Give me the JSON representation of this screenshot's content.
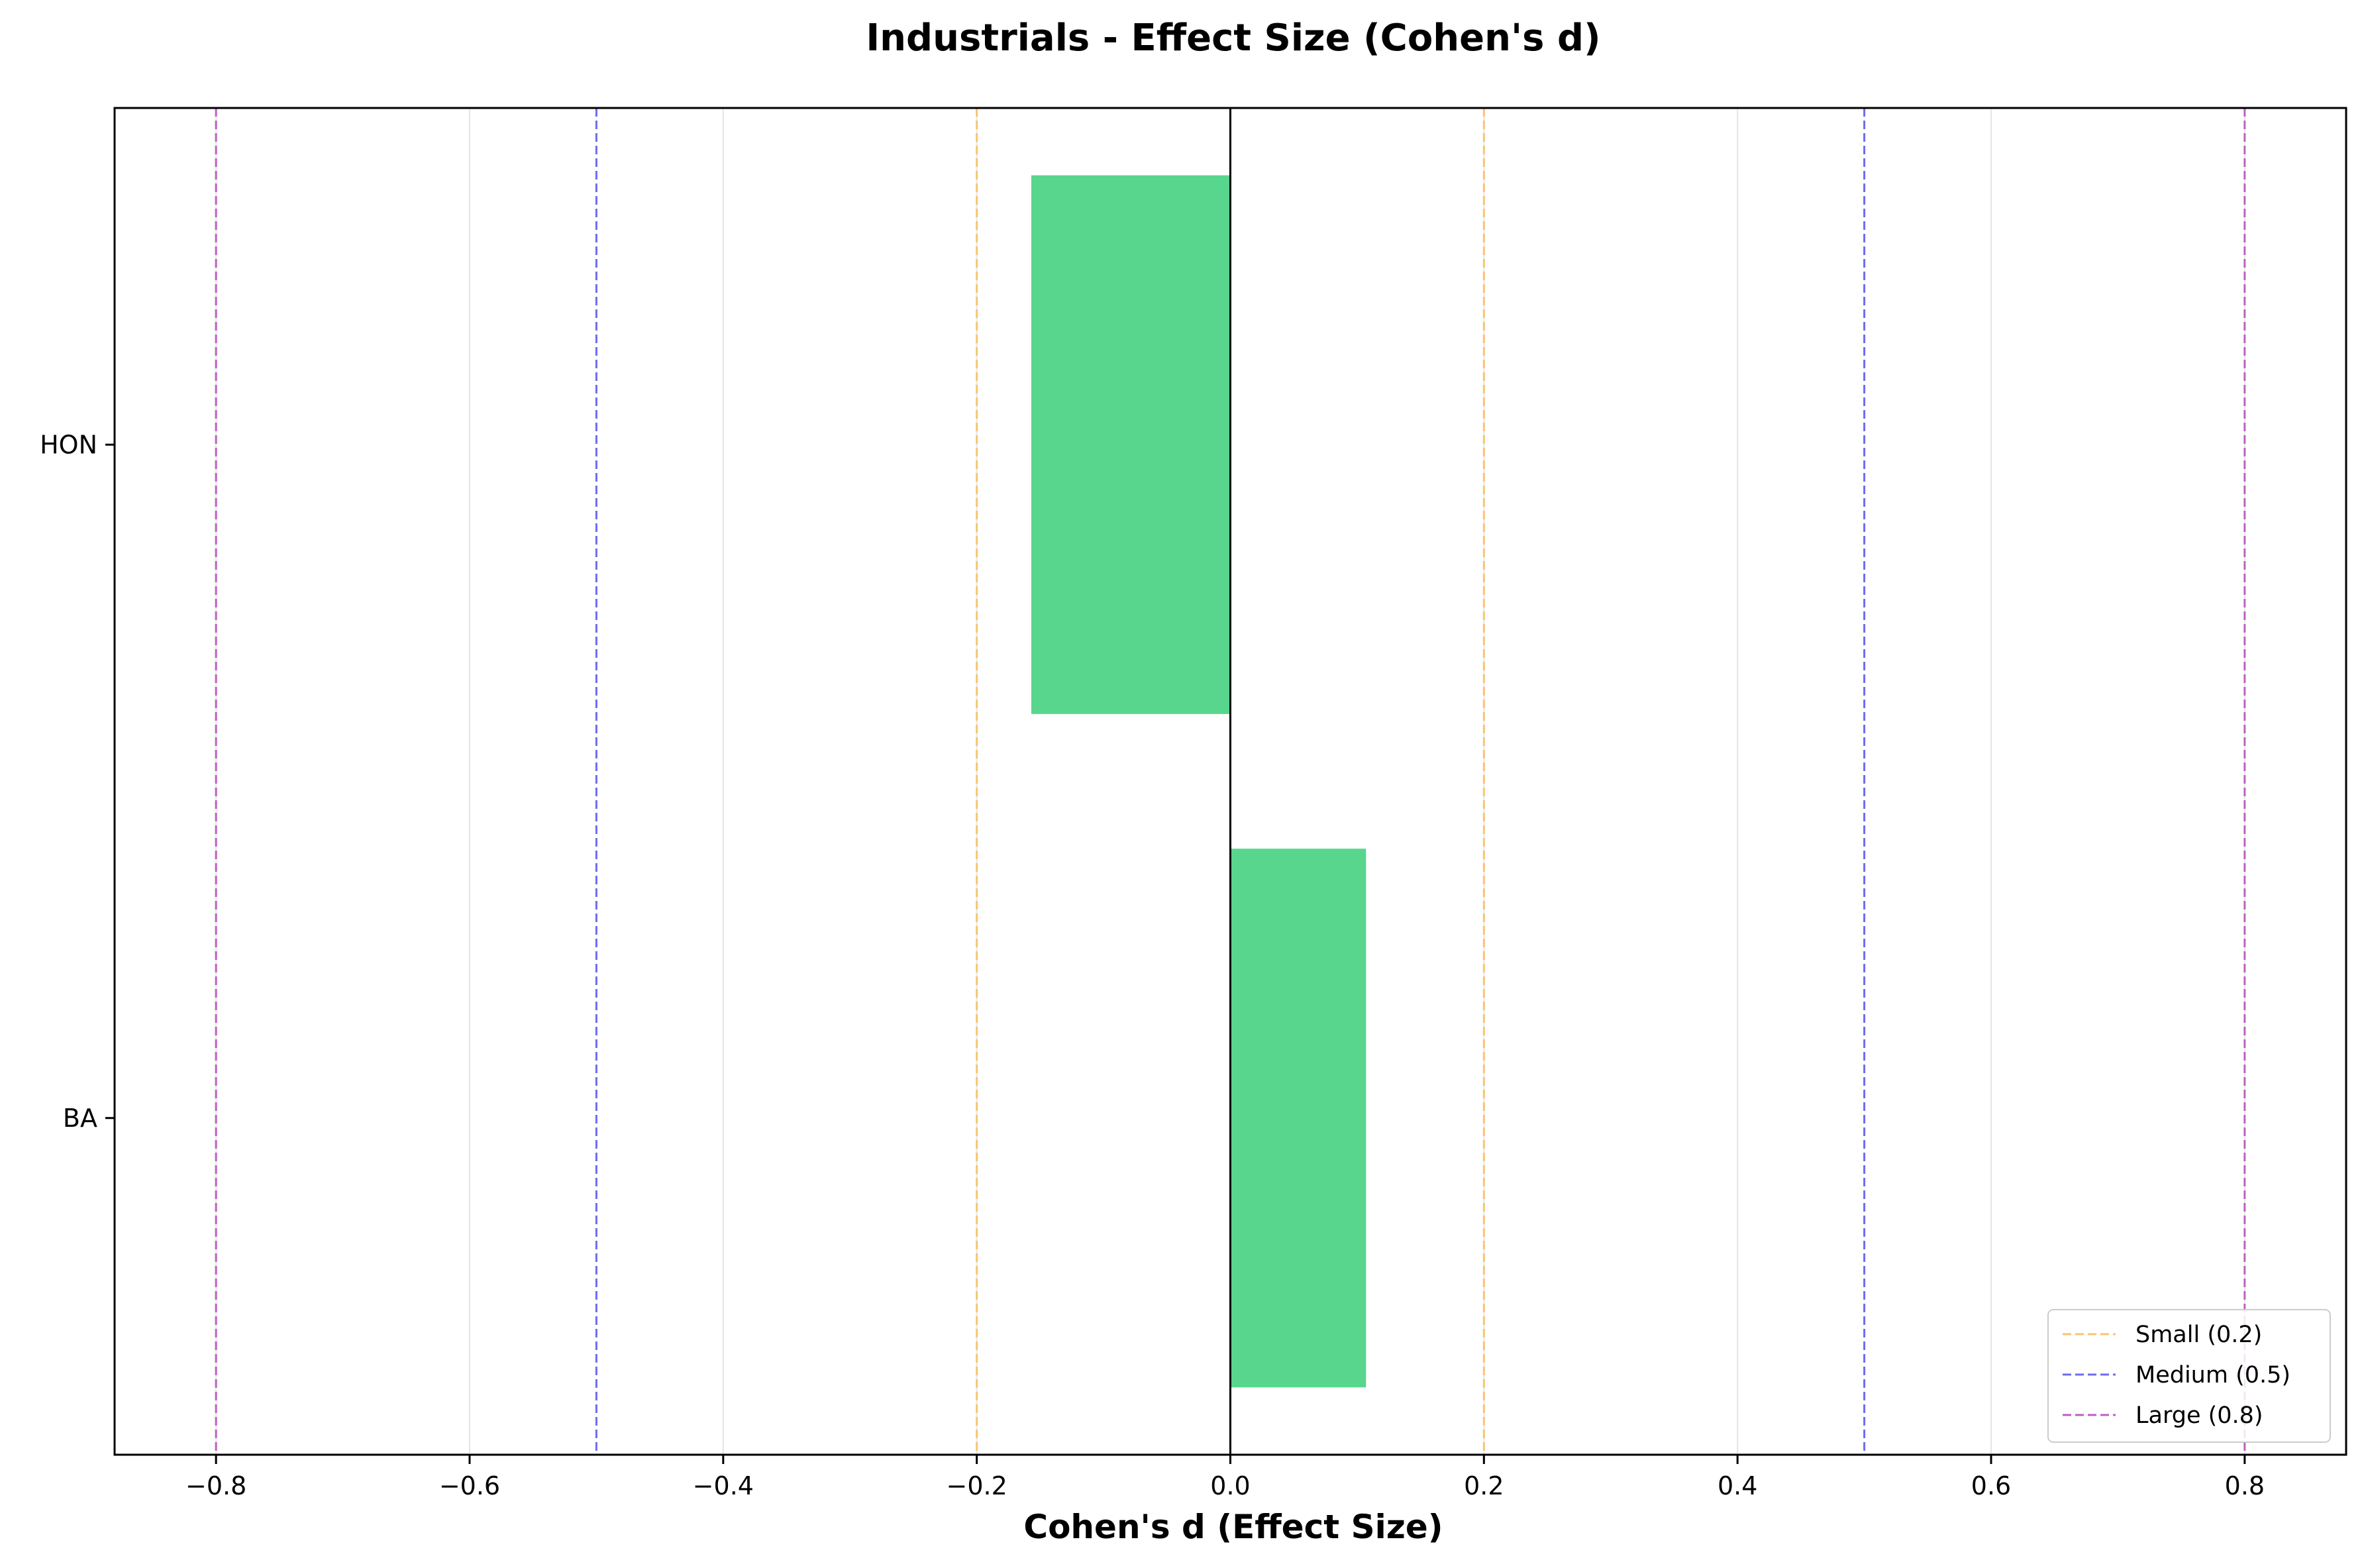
{
  "chart_data": {
    "type": "bar",
    "orientation": "horizontal",
    "title": "Industrials - Effect Size (Cohen's d)",
    "xlabel": "Cohen's d (Effect Size)",
    "ylabel": "",
    "categories": [
      "HON",
      "BA"
    ],
    "values": [
      -0.157,
      0.107
    ],
    "bar_color": "#58d68d",
    "xlim": [
      -0.88,
      0.88
    ],
    "xticks": [
      -0.8,
      -0.6,
      -0.4,
      -0.2,
      0.0,
      0.2,
      0.4,
      0.6,
      0.8
    ],
    "xtick_labels": [
      "−0.8",
      "−0.6",
      "−0.4",
      "−0.2",
      "0.0",
      "0.2",
      "0.4",
      "0.6",
      "0.8"
    ],
    "grid": "vertical",
    "zero_line": true,
    "reference_lines": [
      {
        "name": "Small (0.2)",
        "value": 0.2,
        "color": "#f8c471"
      },
      {
        "name": "Medium (0.5)",
        "value": 0.5,
        "color": "#6c6cf0"
      },
      {
        "name": "Large (0.8)",
        "value": 0.8,
        "color": "#bb62c0"
      }
    ],
    "legend_position": "lower-right"
  }
}
